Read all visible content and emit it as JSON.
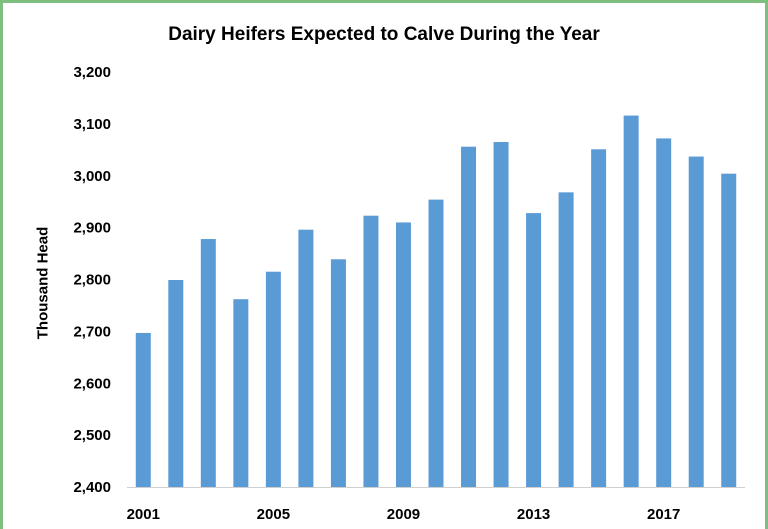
{
  "chart_data": {
    "type": "bar",
    "title": "Dairy Heifers Expected to Calve During the Year",
    "xlabel": "",
    "ylabel": "Thousand Head",
    "categories": [
      "2001",
      "2002",
      "2003",
      "2004",
      "2005",
      "2006",
      "2007",
      "2008",
      "2009",
      "2010",
      "2011",
      "2012",
      "2013",
      "2014",
      "2015",
      "2016",
      "2017",
      "2018",
      "2019"
    ],
    "x_tick_labels": [
      "2001",
      "2005",
      "2009",
      "2013",
      "2017"
    ],
    "y_tick_labels": [
      "2,400",
      "2,500",
      "2,600",
      "2,700",
      "2,800",
      "2,900",
      "3,000",
      "3,100",
      "3,200"
    ],
    "values": [
      2697,
      2799,
      2878,
      2762,
      2815,
      2896,
      2839,
      2923,
      2910,
      2954,
      3056,
      3065,
      2928,
      2968,
      3051,
      3116,
      3072,
      3037,
      3004
    ],
    "ylim": [
      2400,
      3200
    ],
    "grid": false,
    "legend": "none",
    "bar_color": "#5b9bd5"
  }
}
